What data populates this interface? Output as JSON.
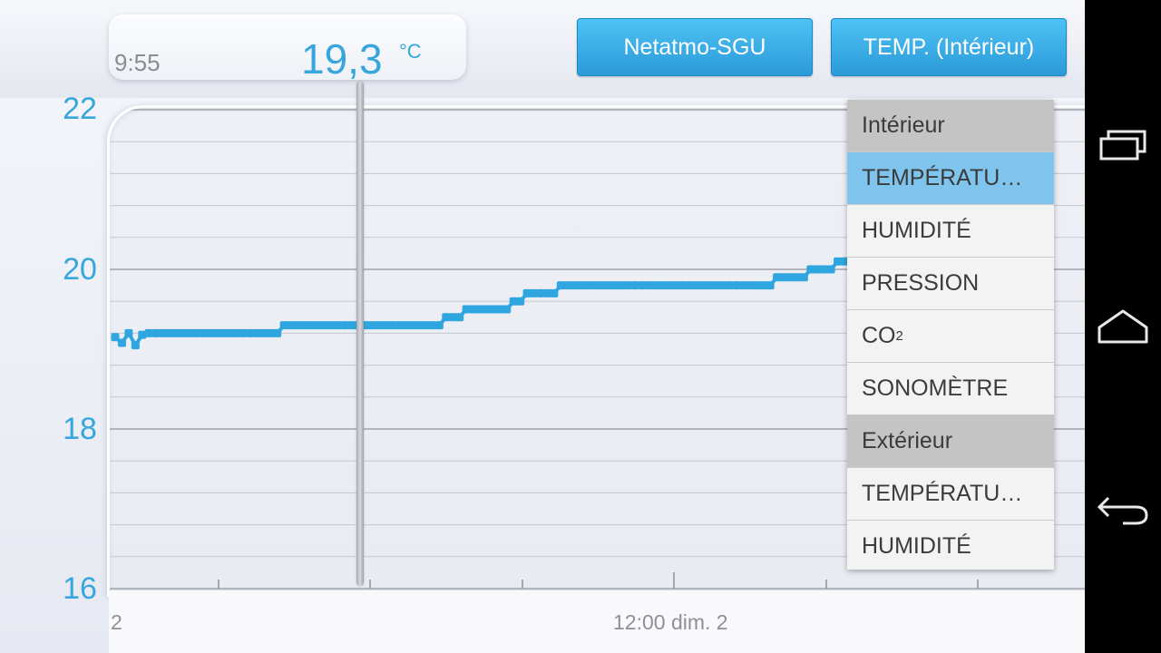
{
  "header": {
    "station_button": "Netatmo-SGU",
    "metric_button": "TEMP. (Intérieur)"
  },
  "tooltip": {
    "time": "9:55",
    "value": "19,3",
    "unit": "°C"
  },
  "time_axis": {
    "left_label": "2",
    "center_label": "12:00 dim. 2"
  },
  "dropdown": {
    "items": [
      {
        "label": "Intérieur",
        "kind": "header"
      },
      {
        "label": "TEMPÉRATU…",
        "kind": "item",
        "selected": true
      },
      {
        "label": "HUMIDITÉ",
        "kind": "item"
      },
      {
        "label": "PRESSION",
        "kind": "item"
      },
      {
        "label": "CO",
        "sub": "2",
        "kind": "item"
      },
      {
        "label": "SONOMÈTRE",
        "kind": "item"
      },
      {
        "label": "Extérieur",
        "kind": "header"
      },
      {
        "label": "TEMPÉRATU…",
        "kind": "item"
      },
      {
        "label": "HUMIDITÉ",
        "kind": "item"
      }
    ]
  },
  "navbar": {
    "icons": [
      "recent-apps-icon",
      "home-icon",
      "back-icon"
    ]
  },
  "colors": {
    "accent": "#37a6dd",
    "series": "#2fa6df",
    "selected_item": "#7fc4ec",
    "header_item": "#c4c4c4"
  },
  "chart_data": {
    "type": "line",
    "ylim": [
      16,
      22
    ],
    "yticks": [
      "22",
      "20",
      "18",
      "16"
    ],
    "grid": true,
    "series": [
      {
        "values": [
          19.15,
          19.08,
          19.2,
          19.05,
          19.18,
          19.2,
          19.2,
          19.2,
          19.2,
          19.2,
          19.2,
          19.2,
          19.2,
          19.2,
          19.2,
          19.2,
          19.2,
          19.2,
          19.2,
          19.2,
          19.2,
          19.2,
          19.2,
          19.2,
          19.2,
          19.3,
          19.3,
          19.3,
          19.3,
          19.3,
          19.3,
          19.3,
          19.3,
          19.3,
          19.3,
          19.3,
          19.3,
          19.3,
          19.3,
          19.3,
          19.3,
          19.3,
          19.3,
          19.3,
          19.3,
          19.3,
          19.3,
          19.3,
          19.3,
          19.4,
          19.4,
          19.4,
          19.5,
          19.5,
          19.5,
          19.5,
          19.5,
          19.5,
          19.5,
          19.6,
          19.6,
          19.7,
          19.7,
          19.7,
          19.7,
          19.7,
          19.8,
          19.8,
          19.8,
          19.8,
          19.8,
          19.8,
          19.8,
          19.8,
          19.8,
          19.8,
          19.8,
          19.8,
          19.8,
          19.8,
          19.8,
          19.8,
          19.8,
          19.8,
          19.8,
          19.8,
          19.8,
          19.8,
          19.8,
          19.8,
          19.8,
          19.8,
          19.8,
          19.8,
          19.8,
          19.8,
          19.8,
          19.8,
          19.9,
          19.9,
          19.9,
          19.9,
          19.9,
          20.0,
          20.0,
          20.0,
          20.0,
          20.1,
          20.1
        ]
      }
    ]
  }
}
